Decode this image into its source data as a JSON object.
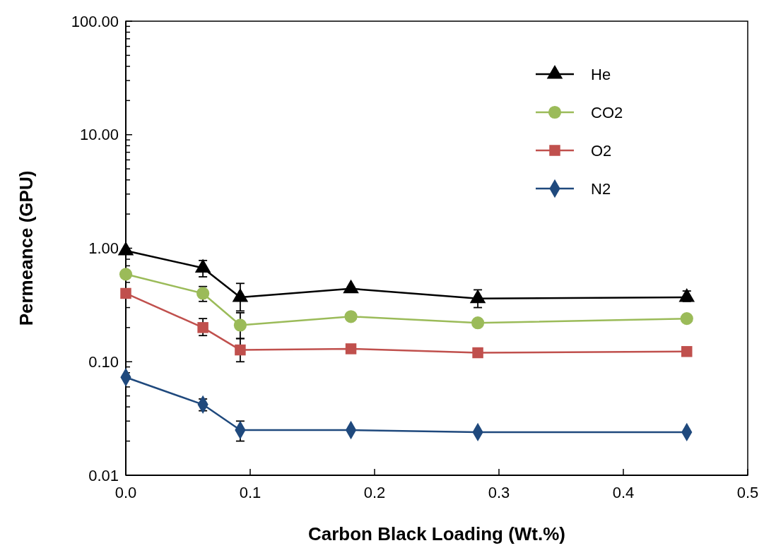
{
  "chart_data": {
    "type": "line",
    "xlabel": "Carbon Black Loading (Wt.%)",
    "ylabel": "Permeance (GPU)",
    "log": "y",
    "x": [
      0,
      0.062,
      0.092,
      0.181,
      0.283,
      0.451
    ],
    "xlim": [
      0,
      0.5
    ],
    "xticks": [
      {
        "value": 0,
        "label": "0.0"
      },
      {
        "value": 0.1,
        "label": "0.1"
      },
      {
        "value": 0.2,
        "label": "0.2"
      },
      {
        "value": 0.3,
        "label": "0.3"
      },
      {
        "value": 0.4,
        "label": "0.4"
      },
      {
        "value": 0.5,
        "label": "0.5"
      }
    ],
    "ylim": [
      0.01,
      100
    ],
    "yticks": [
      {
        "value": 0.01,
        "label": "0.01"
      },
      {
        "value": 0.02,
        "label": null
      },
      {
        "value": 0.03,
        "label": null
      },
      {
        "value": 0.04,
        "label": null
      },
      {
        "value": 0.05,
        "label": null
      },
      {
        "value": 0.06,
        "label": null
      },
      {
        "value": 0.07,
        "label": null
      },
      {
        "value": 0.08,
        "label": null
      },
      {
        "value": 0.09,
        "label": null
      },
      {
        "value": 0.1,
        "label": "0.10"
      },
      {
        "value": 0.2,
        "label": null
      },
      {
        "value": 0.3,
        "label": null
      },
      {
        "value": 0.4,
        "label": null
      },
      {
        "value": 0.5,
        "label": null
      },
      {
        "value": 0.6,
        "label": null
      },
      {
        "value": 0.7,
        "label": null
      },
      {
        "value": 0.8,
        "label": null
      },
      {
        "value": 0.9,
        "label": null
      },
      {
        "value": 1,
        "label": "1.00"
      },
      {
        "value": 2,
        "label": null
      },
      {
        "value": 3,
        "label": null
      },
      {
        "value": 4,
        "label": null
      },
      {
        "value": 5,
        "label": null
      },
      {
        "value": 6,
        "label": null
      },
      {
        "value": 7,
        "label": null
      },
      {
        "value": 8,
        "label": null
      },
      {
        "value": 9,
        "label": null
      },
      {
        "value": 10,
        "label": "10.00"
      },
      {
        "value": 20,
        "label": null
      },
      {
        "value": 30,
        "label": null
      },
      {
        "value": 40,
        "label": null
      },
      {
        "value": 50,
        "label": null
      },
      {
        "value": 60,
        "label": null
      },
      {
        "value": 70,
        "label": null
      },
      {
        "value": 80,
        "label": null
      },
      {
        "value": 90,
        "label": null
      },
      {
        "value": 100,
        "label": "100.00"
      }
    ],
    "grid": false,
    "legend": "top right",
    "line_style": "solid",
    "series": [
      {
        "name": "He",
        "color": "#000000",
        "marker": "triangle",
        "values": [
          0.95,
          0.67,
          0.37,
          0.44,
          0.36,
          0.37
        ],
        "errors": [
          null,
          [
            0.56,
            0.78
          ],
          [
            0.28,
            0.49
          ],
          null,
          [
            0.3,
            0.43
          ],
          [
            0.34,
            0.42
          ]
        ]
      },
      {
        "name": "CO2",
        "color": "#9bbb59",
        "marker": "circle",
        "values": [
          0.59,
          0.4,
          0.21,
          0.25,
          0.22,
          0.24
        ],
        "errors": [
          null,
          [
            0.34,
            0.46
          ],
          [
            0.16,
            0.27
          ],
          null,
          null,
          null
        ]
      },
      {
        "name": "O2",
        "color": "#c0504d",
        "marker": "square",
        "values": [
          0.4,
          0.2,
          0.127,
          0.13,
          0.12,
          0.123
        ],
        "errors": [
          null,
          [
            0.17,
            0.24
          ],
          [
            0.1,
            0.16
          ],
          null,
          null,
          null
        ]
      },
      {
        "name": "N2",
        "color": "#1f497d",
        "marker": "diamond",
        "values": [
          0.073,
          0.042,
          0.025,
          0.025,
          0.024,
          0.024
        ],
        "errors": [
          null,
          [
            0.037,
            0.047
          ],
          [
            0.02,
            0.03
          ],
          null,
          null,
          null
        ]
      }
    ]
  }
}
